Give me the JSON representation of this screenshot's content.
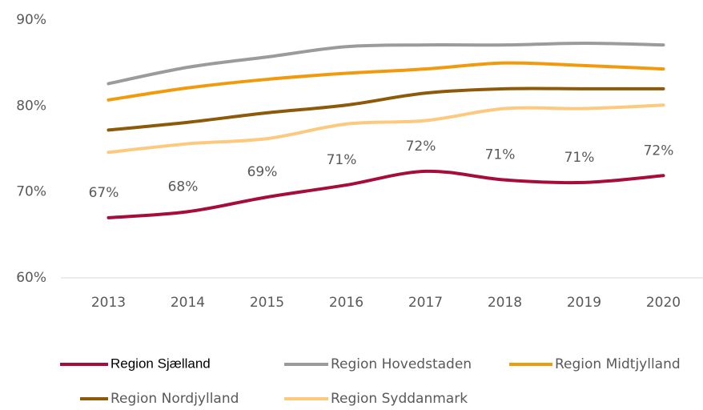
{
  "chart_data": {
    "type": "line",
    "categories": [
      "2013",
      "2014",
      "2015",
      "2016",
      "2017",
      "2018",
      "2019",
      "2020"
    ],
    "series": [
      {
        "name": "Region Sjælland",
        "color": "#a50d3a",
        "values": [
          67.0,
          67.7,
          69.4,
          70.8,
          72.4,
          71.4,
          71.1,
          71.9
        ],
        "value_labels": [
          "67%",
          "68%",
          "69%",
          "71%",
          "72%",
          "71%",
          "71%",
          "72%"
        ]
      },
      {
        "name": "Region Hovedstaden",
        "color": "#9b9b9b",
        "values": [
          82.6,
          84.5,
          85.7,
          86.9,
          87.1,
          87.1,
          87.3,
          87.1
        ]
      },
      {
        "name": "Region Midtjylland",
        "color": "#f29a0e",
        "values": [
          80.7,
          82.1,
          83.1,
          83.8,
          84.3,
          85.0,
          84.7,
          84.3
        ]
      },
      {
        "name": "Region Nordjylland",
        "color": "#8c5a0a",
        "values": [
          77.2,
          78.1,
          79.2,
          80.1,
          81.5,
          82.0,
          82.0,
          82.0
        ]
      },
      {
        "name": "Region Syddanmark",
        "color": "#fcc97e",
        "values": [
          74.6,
          75.6,
          76.2,
          77.9,
          78.3,
          79.7,
          79.7,
          80.1
        ]
      }
    ],
    "ylim": [
      60,
      90
    ],
    "yticks": [
      {
        "value": 60,
        "label": "60%"
      },
      {
        "value": 70,
        "label": "70%"
      },
      {
        "value": 80,
        "label": "80%"
      },
      {
        "value": 90,
        "label": "90%"
      }
    ],
    "grid": false,
    "legend": "bottom"
  }
}
